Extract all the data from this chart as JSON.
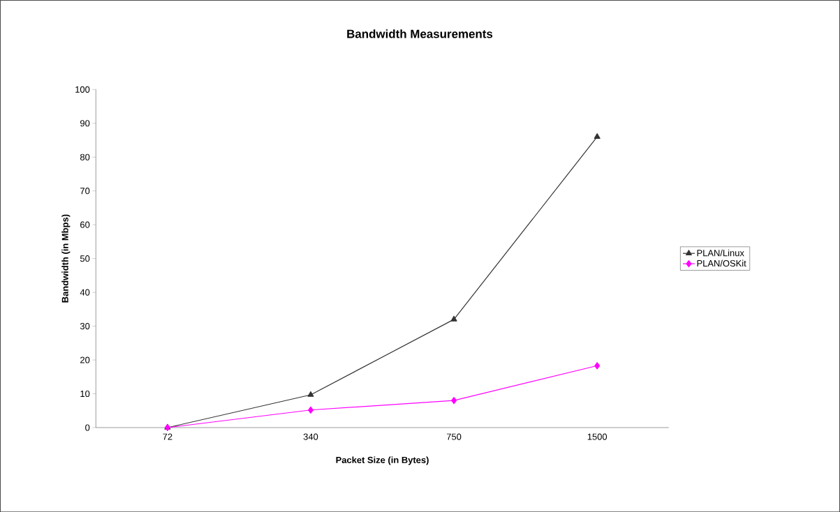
{
  "chart_data": {
    "type": "line",
    "title": "Bandwidth Measurements",
    "xlabel": "Packet Size (in Bytes)",
    "ylabel": "Bandwidth (in Mbps)",
    "categories": [
      "72",
      "340",
      "750",
      "1500"
    ],
    "series": [
      {
        "name": "PLAN/Linux",
        "color": "#333333",
        "marker": "triangle",
        "values": [
          0,
          9.7,
          32,
          86
        ]
      },
      {
        "name": "PLAN/OSKit",
        "color": "#ff00ff",
        "marker": "diamond",
        "values": [
          0,
          5.2,
          8,
          18.3
        ]
      }
    ],
    "ylim": [
      0,
      100
    ],
    "yticks": [
      0,
      10,
      20,
      30,
      40,
      50,
      60,
      70,
      80,
      90,
      100
    ],
    "grid": false,
    "legend": "right"
  }
}
